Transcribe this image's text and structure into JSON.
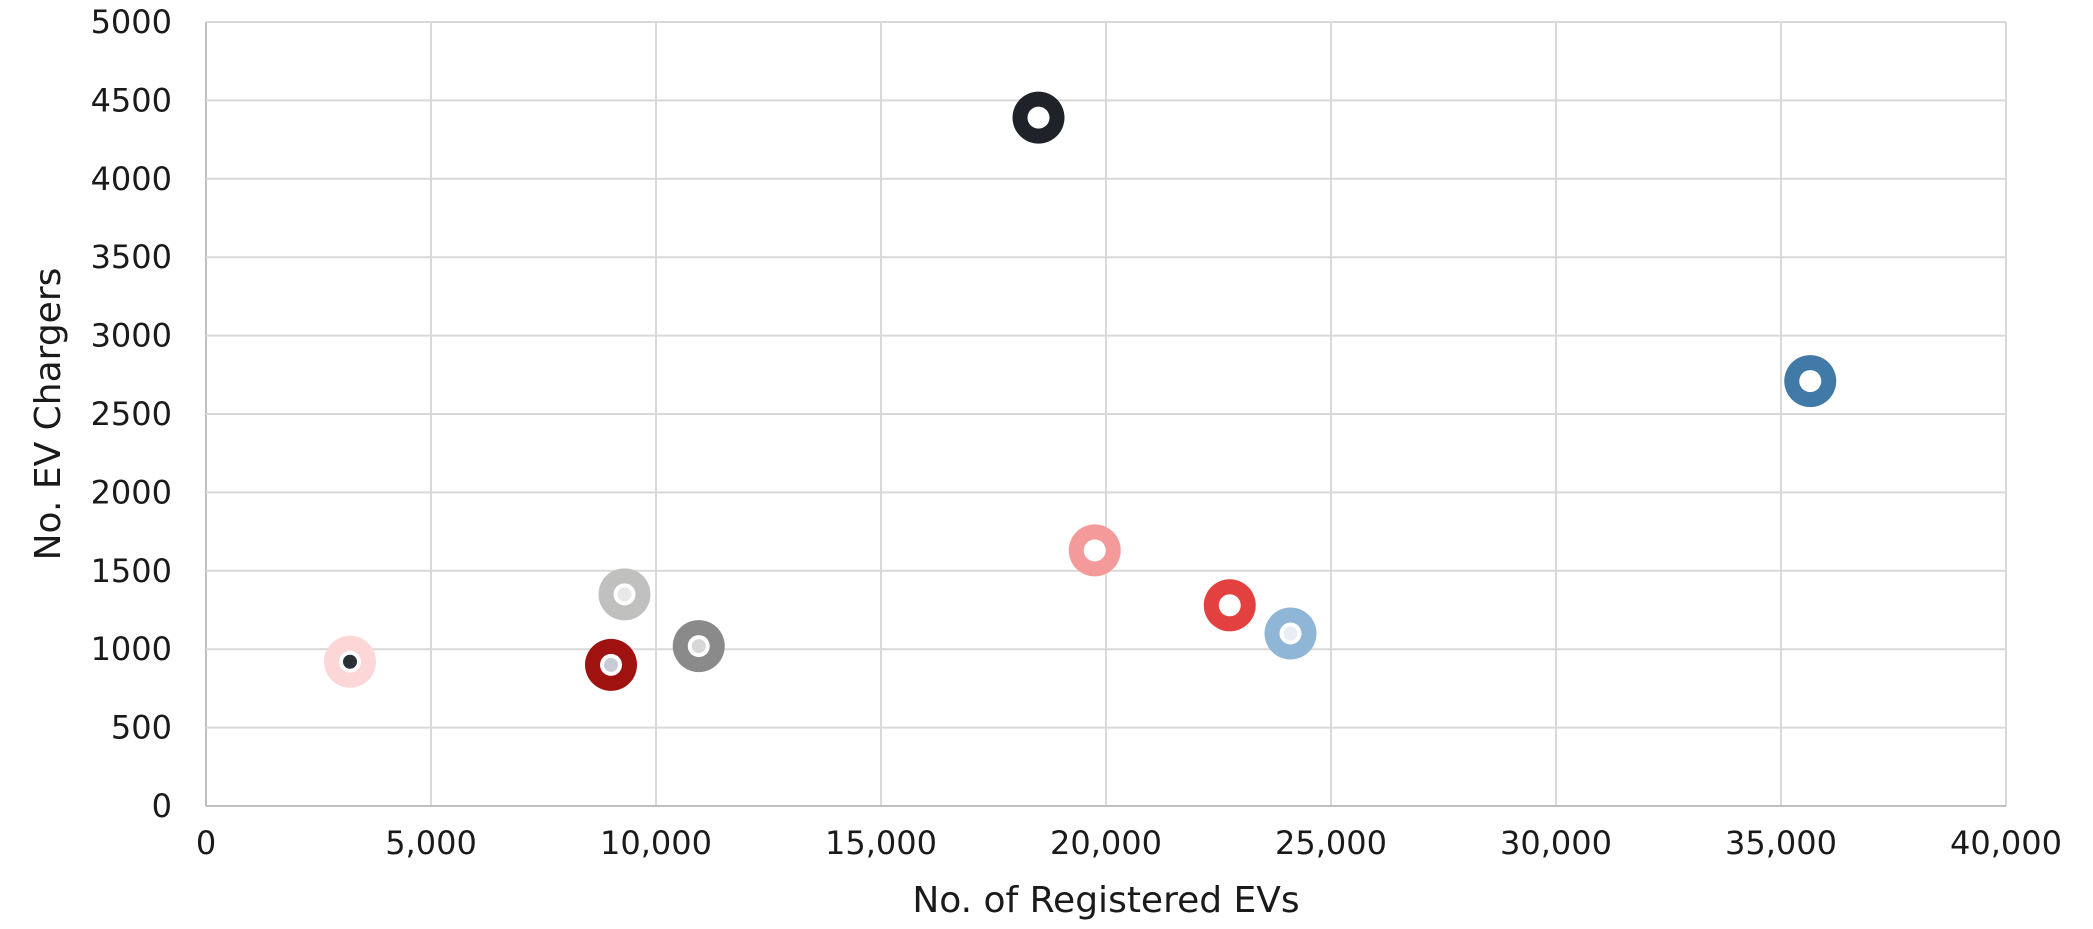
{
  "chart_data": {
    "type": "scatter",
    "xlabel": "No. of Registered EVs",
    "ylabel": "No. EV Chargers",
    "xlim": [
      0,
      40000
    ],
    "ylim": [
      0,
      5000
    ],
    "x_ticks": [
      "0",
      "5,000",
      "10,000",
      "15,000",
      "20,000",
      "25,000",
      "30,000",
      "35,000",
      "40,000"
    ],
    "y_ticks": [
      "0",
      "500",
      "1000",
      "1500",
      "2000",
      "2500",
      "3000",
      "3500",
      "4000",
      "4500",
      "5000"
    ],
    "grid": true,
    "points": [
      {
        "x": 3200,
        "y": 920,
        "color": "#fdd7d7",
        "center": "#2b2f36"
      },
      {
        "x": 9000,
        "y": 900,
        "color": "#a0120f",
        "center": "#c9ccd6"
      },
      {
        "x": 9300,
        "y": 1350,
        "color": "#c0c0bf",
        "center": "#e8e8e8"
      },
      {
        "x": 10950,
        "y": 1020,
        "color": "#8a8a8a",
        "center": "#d7d7d7"
      },
      {
        "x": 18500,
        "y": 4390,
        "color": "#1f2329",
        "center": "#ffffff"
      },
      {
        "x": 19750,
        "y": 1630,
        "color": "#f49a9a",
        "center": "#ffffff"
      },
      {
        "x": 22750,
        "y": 1280,
        "color": "#e2413f",
        "center": "#ffffff"
      },
      {
        "x": 24100,
        "y": 1100,
        "color": "#8fb6d6",
        "center": "#e8eef5"
      },
      {
        "x": 35650,
        "y": 2710,
        "color": "#4179a7",
        "center": "#ffffff"
      }
    ]
  }
}
